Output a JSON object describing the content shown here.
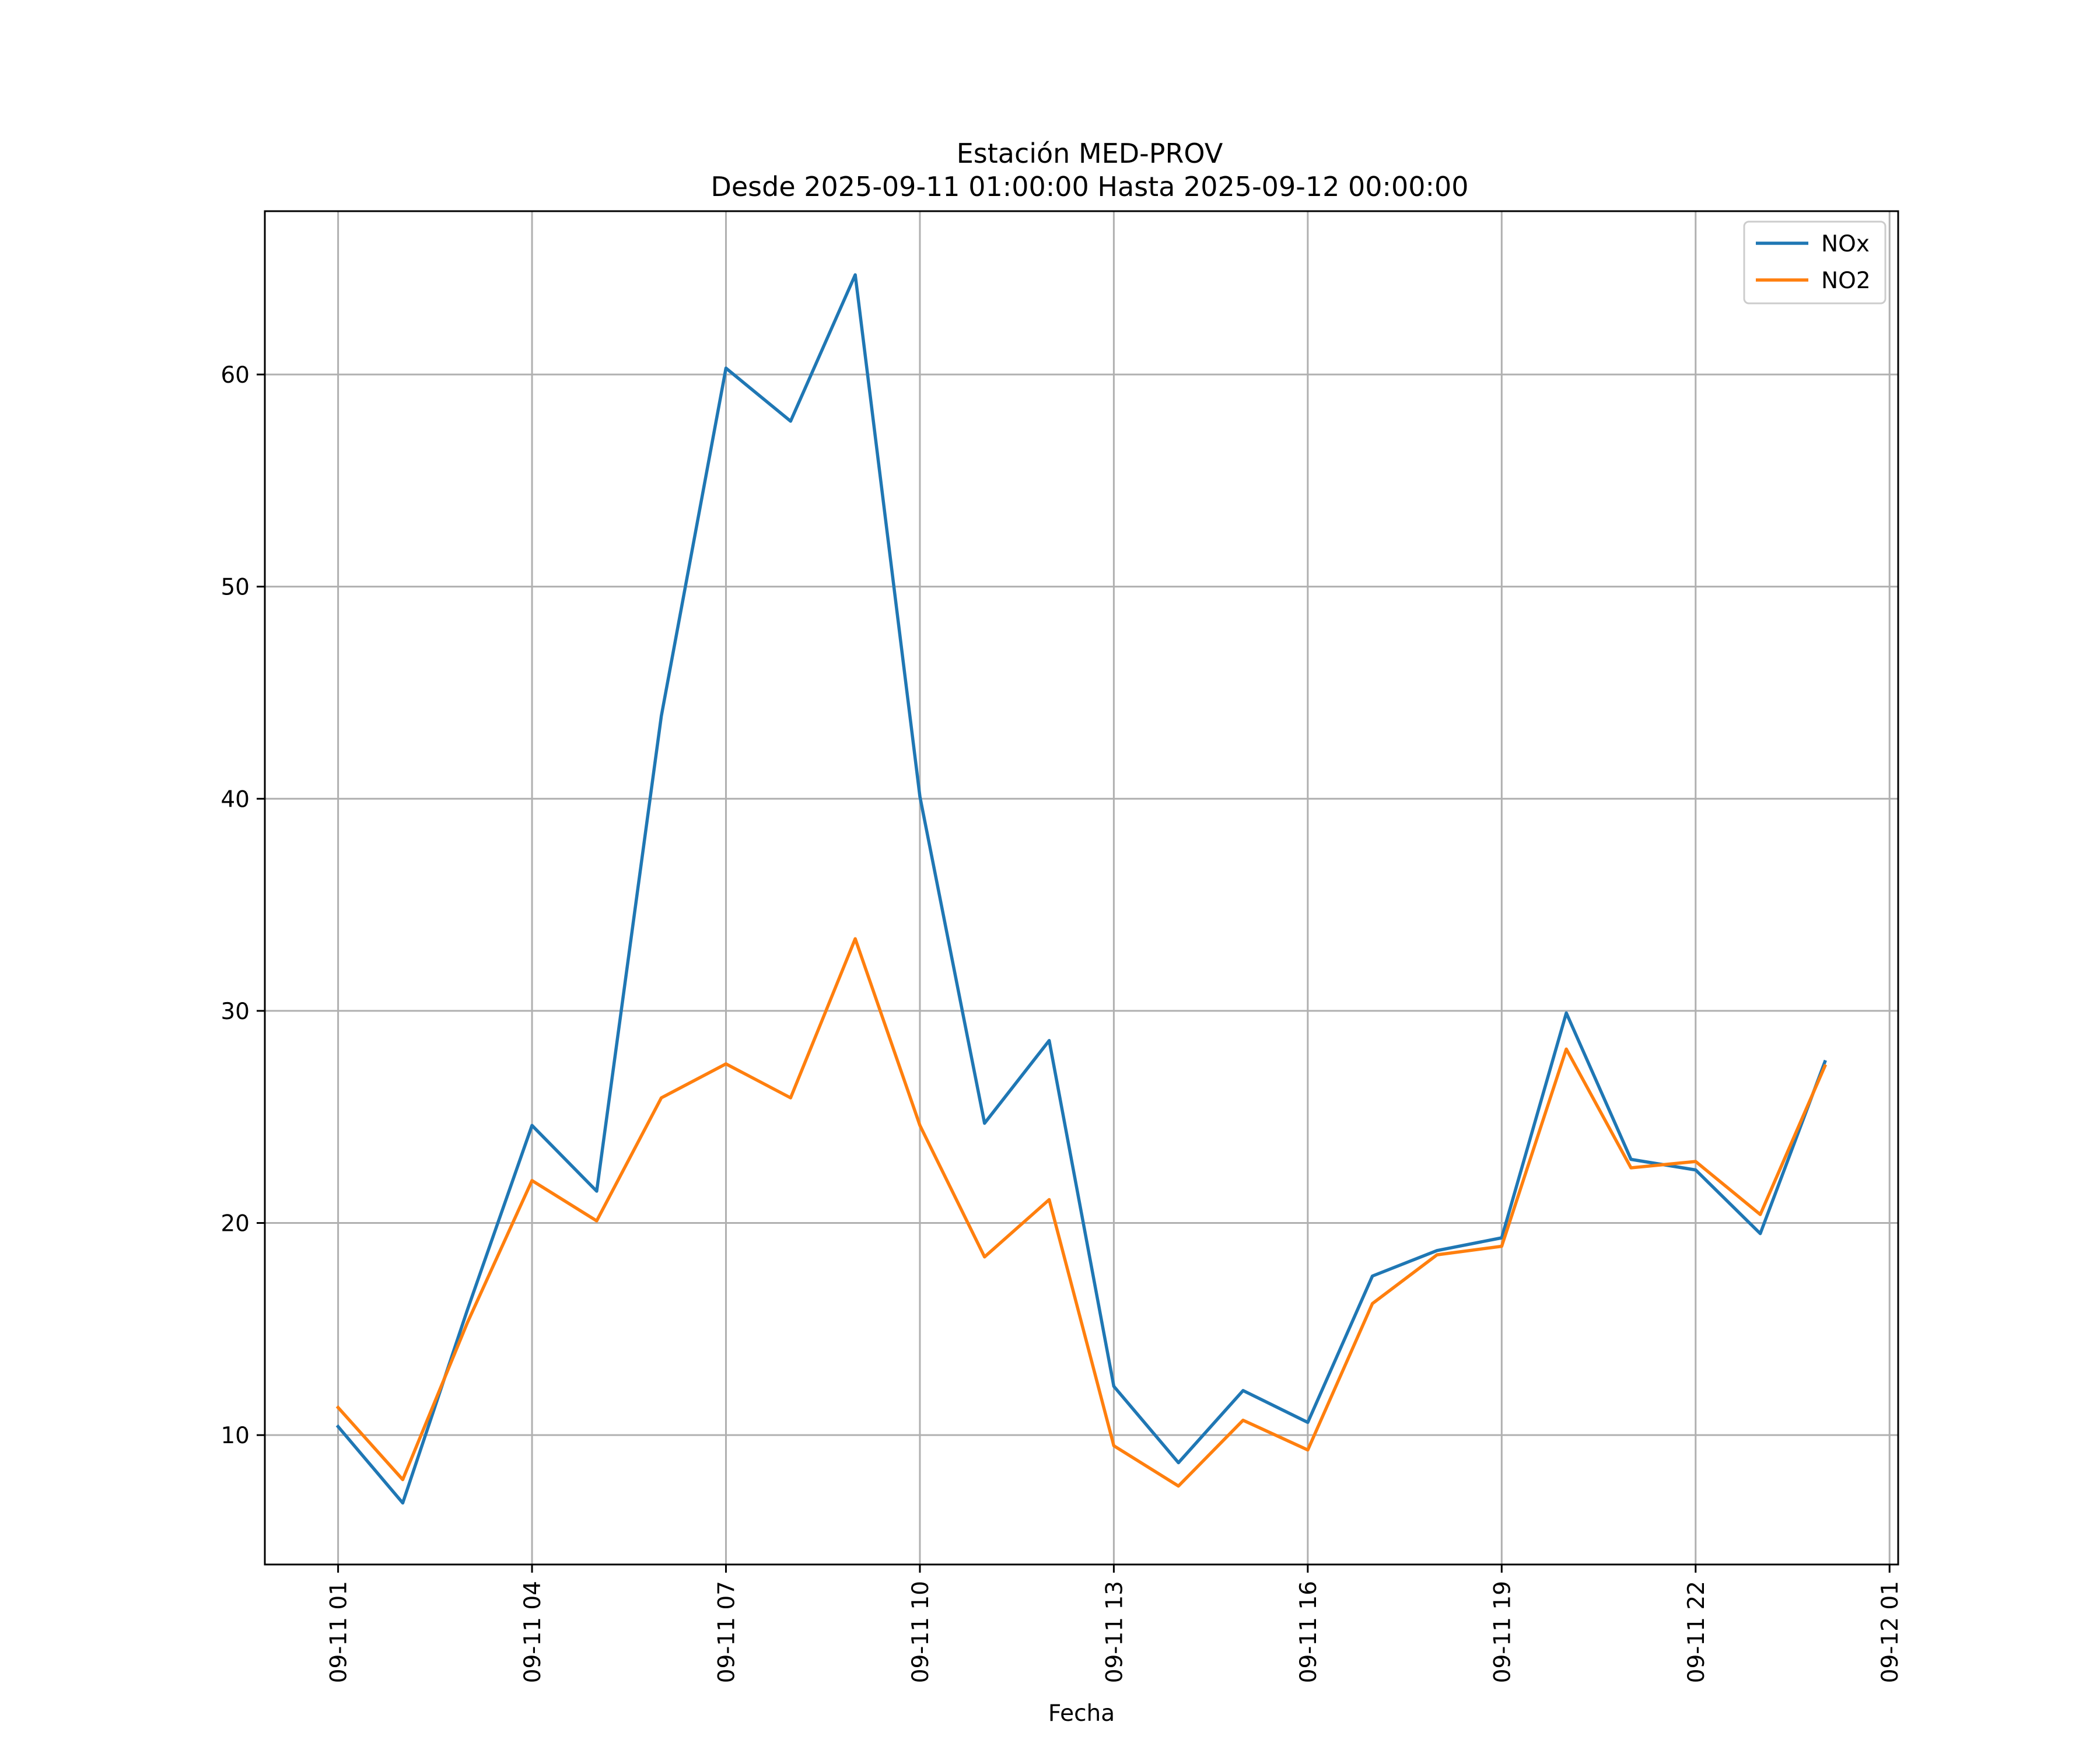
{
  "chart_data": {
    "type": "line",
    "title": "Estación MED-PROV",
    "subtitle": "Desde 2025-09-11 01:00:00 Hasta 2025-09-12 00:00:00",
    "xlabel": "Fecha",
    "ylabel": "",
    "x": [
      "09-11 01",
      "09-11 02",
      "09-11 03",
      "09-11 04",
      "09-11 05",
      "09-11 06",
      "09-11 07",
      "09-11 08",
      "09-11 09",
      "09-11 10",
      "09-11 11",
      "09-11 12",
      "09-11 13",
      "09-11 14",
      "09-11 15",
      "09-11 16",
      "09-11 17",
      "09-11 18",
      "09-11 19",
      "09-11 20",
      "09-11 21",
      "09-11 22",
      "09-11 23",
      "09-12 00"
    ],
    "x_hours": [
      1,
      2,
      3,
      4,
      5,
      6,
      7,
      8,
      9,
      10,
      11,
      12,
      13,
      14,
      15,
      16,
      17,
      18,
      19,
      20,
      21,
      22,
      23,
      24
    ],
    "xlim": [
      -0.1333,
      25.1333
    ],
    "ylim": [
      3.9,
      67.7
    ],
    "x_ticks": [
      {
        "hour": 1,
        "label": "09-11 01"
      },
      {
        "hour": 4,
        "label": "09-11 04"
      },
      {
        "hour": 7,
        "label": "09-11 07"
      },
      {
        "hour": 10,
        "label": "09-11 10"
      },
      {
        "hour": 13,
        "label": "09-11 13"
      },
      {
        "hour": 16,
        "label": "09-11 16"
      },
      {
        "hour": 19,
        "label": "09-11 19"
      },
      {
        "hour": 22,
        "label": "09-11 22"
      },
      {
        "hour": 25,
        "label": "09-12 01"
      }
    ],
    "y_ticks": [
      10,
      20,
      30,
      40,
      50,
      60
    ],
    "grid": true,
    "legend_position": "top-right",
    "series": [
      {
        "name": "NOx",
        "color": "#1f77b4",
        "values": [
          10.4,
          6.8,
          15.9,
          24.6,
          21.5,
          43.9,
          60.3,
          57.8,
          64.7,
          40.1,
          24.7,
          28.6,
          12.3,
          8.7,
          12.1,
          10.6,
          17.5,
          18.7,
          19.3,
          29.9,
          23.0,
          22.5,
          19.5,
          27.6
        ]
      },
      {
        "name": "NO2",
        "color": "#ff7f0e",
        "values": [
          11.3,
          7.9,
          15.3,
          22.0,
          20.1,
          25.9,
          27.5,
          25.9,
          33.4,
          24.6,
          18.4,
          21.1,
          9.5,
          7.6,
          10.7,
          9.3,
          16.2,
          18.5,
          18.9,
          28.2,
          22.6,
          22.9,
          20.4,
          27.4
        ]
      }
    ]
  }
}
